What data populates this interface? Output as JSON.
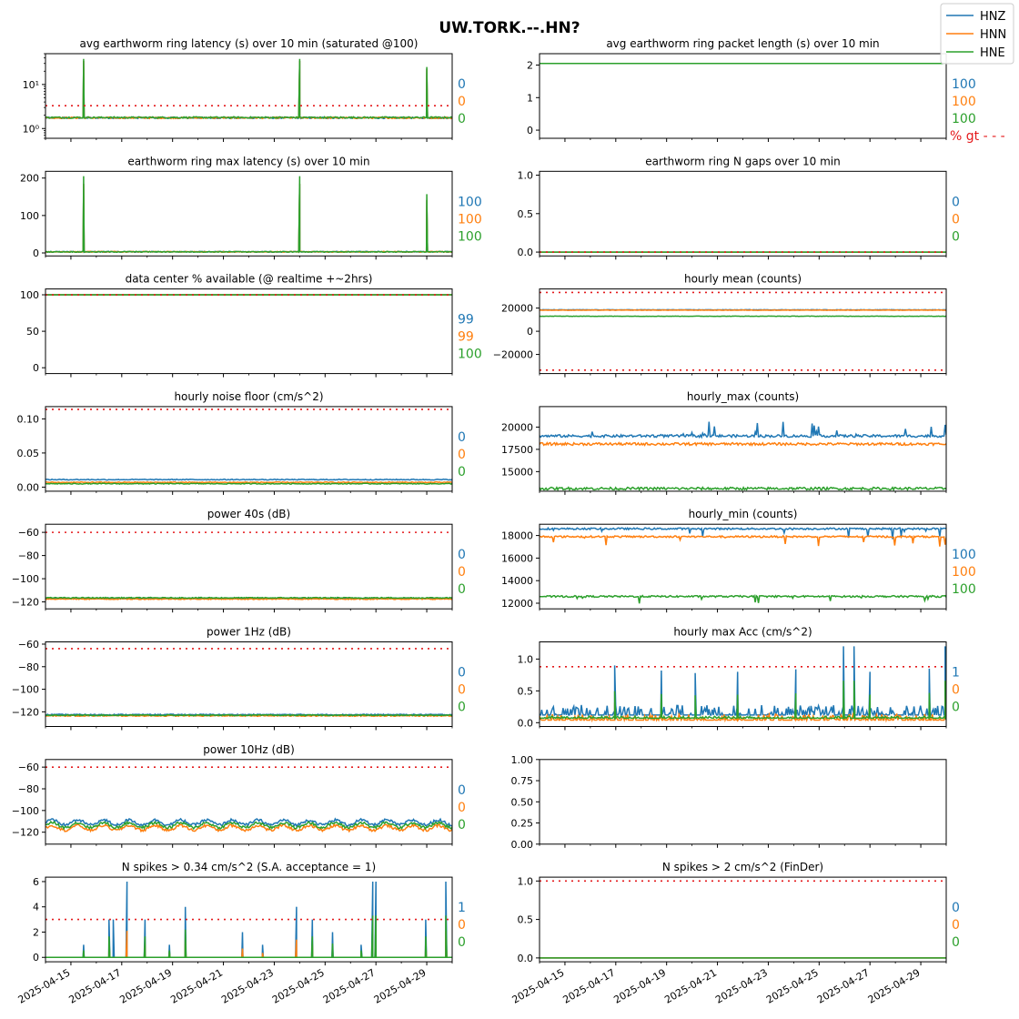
{
  "figure_title": "UW.TORK.--.HN?",
  "legend": {
    "entries": [
      {
        "label": "HNZ",
        "color": "#1f77b4"
      },
      {
        "label": "HNN",
        "color": "#ff7f0e"
      },
      {
        "label": "HNE",
        "color": "#2ca02c"
      }
    ]
  },
  "threshold_color": "#e41a1c",
  "x_tick_labels": [
    "2025-04-15",
    "2025-04-17",
    "2025-04-19",
    "2025-04-21",
    "2025-04-23",
    "2025-04-25",
    "2025-04-27",
    "2025-04-29"
  ],
  "chart_data": [
    {
      "id": "p1",
      "type": "line",
      "title": "avg earthworm ring latency (s)   over 10 min (saturated @100)",
      "yscale": "log",
      "ylim": [
        0.6,
        50
      ],
      "yticks": [
        1,
        10
      ],
      "ytick_labels": [
        "10⁰",
        "10¹"
      ],
      "threshold": [
        3.3
      ],
      "baselines": [
        1.75,
        1.75,
        1.78
      ],
      "spikes": [
        {
          "x": "2025-04-15T12:00",
          "y": 38
        },
        {
          "x": "2025-04-24T00:00",
          "y": 38
        },
        {
          "x": "2025-04-29T00:00",
          "y": 25
        }
      ],
      "pct_labels": [
        "0",
        "0",
        "0"
      ]
    },
    {
      "id": "p2",
      "type": "line",
      "title": "avg earthworm ring packet length (s)   over 10 min",
      "ylim": [
        -0.25,
        2.35
      ],
      "yticks": [
        0,
        1,
        2
      ],
      "ytick_labels": [
        "0",
        "1",
        "2"
      ],
      "threshold": [],
      "baselines": [
        2.05,
        2.05,
        2.05
      ],
      "pct_labels": [
        "100",
        "100",
        "100"
      ],
      "extra_label": "% gt - - -"
    },
    {
      "id": "p3",
      "type": "line",
      "title": "earthworm ring max latency (s)   over 10 min",
      "ylim": [
        -8,
        218
      ],
      "yticks": [
        0,
        100,
        200
      ],
      "ytick_labels": [
        "0",
        "100",
        "200"
      ],
      "threshold": [],
      "baselines": [
        3,
        3,
        3
      ],
      "spikes": [
        {
          "x": "2025-04-15T12:00",
          "y": 205
        },
        {
          "x": "2025-04-24T00:00",
          "y": 205
        },
        {
          "x": "2025-04-29T00:00",
          "y": 157
        }
      ],
      "pct_labels": [
        "100",
        "100",
        "100"
      ]
    },
    {
      "id": "p4",
      "type": "line",
      "title": "earthworm ring N gaps   over 10 min",
      "ylim": [
        -0.05,
        1.05
      ],
      "yticks": [
        0,
        0.5,
        1
      ],
      "ytick_labels": [
        "0.0",
        "0.5",
        "1.0"
      ],
      "threshold": [
        0
      ],
      "baselines": [
        0,
        0,
        0
      ],
      "pct_labels": [
        "0",
        "0",
        "0"
      ]
    },
    {
      "id": "p5",
      "type": "line",
      "title": "data center % available (@ realtime +~2hrs)",
      "ylim": [
        -8,
        108
      ],
      "yticks": [
        0,
        50,
        100
      ],
      "ytick_labels": [
        "0",
        "50",
        "100"
      ],
      "threshold": [
        100
      ],
      "baselines": [
        100,
        100,
        100
      ],
      "pct_labels": [
        "99",
        "99",
        "100"
      ]
    },
    {
      "id": "p6",
      "type": "line",
      "title": "hourly mean (counts)",
      "ylim": [
        -36500,
        36500
      ],
      "yticks": [
        -20000,
        0,
        20000
      ],
      "ytick_labels": [
        "−20000",
        "0",
        "20000"
      ],
      "threshold": [
        33500,
        -33500
      ],
      "baselines": [
        18500,
        18200,
        13000
      ],
      "pct_labels": []
    },
    {
      "id": "p7",
      "type": "line",
      "title": "hourly noise floor (cm/s^2)",
      "ylim": [
        -0.006,
        0.118
      ],
      "yticks": [
        0,
        0.05,
        0.1
      ],
      "ytick_labels": [
        "0.00",
        "0.05",
        "0.10"
      ],
      "threshold": [
        0.114
      ],
      "baselines": [
        0.011,
        0.007,
        0.005
      ],
      "pct_labels": [
        "0",
        "0",
        "0"
      ]
    },
    {
      "id": "p8",
      "type": "line",
      "title": "hourly_max (counts)",
      "ylim": [
        12800,
        22300
      ],
      "yticks": [
        15000,
        17500,
        20000
      ],
      "ytick_labels": [
        "15000",
        "17500",
        "20000"
      ],
      "threshold": [],
      "baselines": [
        19000,
        18100,
        13100
      ],
      "pct_labels": []
    },
    {
      "id": "p9",
      "type": "line",
      "title": "power 40s (dB)",
      "ylim": [
        -126,
        -53
      ],
      "yticks": [
        -120,
        -100,
        -80,
        -60
      ],
      "ytick_labels": [
        "−120",
        "−100",
        "−80",
        "−60"
      ],
      "threshold": [
        -60
      ],
      "baselines": [
        -117,
        -117.5,
        -116.5
      ],
      "pct_labels": [
        "0",
        "0",
        "0"
      ]
    },
    {
      "id": "p10",
      "type": "line",
      "title": "hourly_min (counts)",
      "ylim": [
        11500,
        19000
      ],
      "yticks": [
        12000,
        14000,
        16000,
        18000
      ],
      "ytick_labels": [
        "12000",
        "14000",
        "16000",
        "18000"
      ],
      "threshold": [],
      "baselines": [
        18600,
        17900,
        12600
      ],
      "pct_labels": [
        "100",
        "100",
        "100"
      ]
    },
    {
      "id": "p11",
      "type": "line",
      "title": "power 1Hz (dB)",
      "ylim": [
        -133,
        -58
      ],
      "yticks": [
        -120,
        -100,
        -80,
        -60
      ],
      "ytick_labels": [
        "−120",
        "−100",
        "−80",
        "−60"
      ],
      "threshold": [
        -64
      ],
      "baselines": [
        -122.5,
        -123.5,
        -123
      ],
      "pct_labels": [
        "0",
        "0",
        "0"
      ]
    },
    {
      "id": "p12",
      "type": "line",
      "title": "hourly max Acc (cm/s^2)",
      "ylim": [
        -0.06,
        1.27
      ],
      "yticks": [
        0,
        0.5,
        1
      ],
      "ytick_labels": [
        "0.0",
        "0.5",
        "1.0"
      ],
      "threshold": [
        0.88
      ],
      "baselines": [
        0.12,
        0.04,
        0.07
      ],
      "spikes": [
        {
          "x": "2025-04-16T23:00",
          "y": 0.9
        },
        {
          "x": "2025-04-18T19:00",
          "y": 0.82
        },
        {
          "x": "2025-04-20T03:00",
          "y": 0.78
        },
        {
          "x": "2025-04-21T19:00",
          "y": 0.8
        },
        {
          "x": "2025-04-24T02:00",
          "y": 0.84
        },
        {
          "x": "2025-04-25T23:00",
          "y": 1.2
        },
        {
          "x": "2025-04-26T09:00",
          "y": 1.2
        },
        {
          "x": "2025-04-27T00:00",
          "y": 0.8
        },
        {
          "x": "2025-04-29T08:00",
          "y": 0.85
        },
        {
          "x": "2025-04-29T23:00",
          "y": 1.2
        }
      ],
      "pct_labels": [
        "1",
        "0",
        "0"
      ]
    },
    {
      "id": "p13",
      "type": "line",
      "title": "power 10Hz (dB)",
      "ylim": [
        -131,
        -53
      ],
      "yticks": [
        -120,
        -100,
        -80,
        -60
      ],
      "ytick_labels": [
        "−120",
        "−100",
        "−80",
        "−60"
      ],
      "threshold": [
        -60
      ],
      "baselines": [
        -111,
        -116,
        -113.5
      ],
      "pct_labels": [
        "0",
        "0",
        "0"
      ]
    },
    {
      "id": "p14",
      "type": "empty",
      "title": "",
      "ylim": [
        0,
        1
      ],
      "yticks": [
        0,
        0.25,
        0.5,
        0.75,
        1
      ],
      "ytick_labels": [
        "0.00",
        "0.25",
        "0.50",
        "0.75",
        "1.00"
      ],
      "threshold": [],
      "baselines": [],
      "pct_labels": []
    },
    {
      "id": "p15",
      "type": "line",
      "title": "N spikes > 0.34 cm/s^2 (S.A. acceptance = 1)",
      "ylim": [
        -0.35,
        6.35
      ],
      "yticks": [
        0,
        2,
        4,
        6
      ],
      "ytick_labels": [
        "0",
        "2",
        "4",
        "6"
      ],
      "threshold": [
        3
      ],
      "baselines": [
        0,
        0,
        0
      ],
      "spikes": [
        {
          "x": "2025-04-15T12:00",
          "y": 1
        },
        {
          "x": "2025-04-16T12:00",
          "y": 3
        },
        {
          "x": "2025-04-16T16:00",
          "y": 3
        },
        {
          "x": "2025-04-17T05:00",
          "y": 6
        },
        {
          "x": "2025-04-17T22:00",
          "y": 3
        },
        {
          "x": "2025-04-18T21:00",
          "y": 1
        },
        {
          "x": "2025-04-19T12:00",
          "y": 4
        },
        {
          "x": "2025-04-21T18:00",
          "y": 2
        },
        {
          "x": "2025-04-22T13:00",
          "y": 1
        },
        {
          "x": "2025-04-23T21:00",
          "y": 4
        },
        {
          "x": "2025-04-24T12:00",
          "y": 3
        },
        {
          "x": "2025-04-25T07:00",
          "y": 2
        },
        {
          "x": "2025-04-26T10:00",
          "y": 1
        },
        {
          "x": "2025-04-26T21:00",
          "y": 6
        },
        {
          "x": "2025-04-27T00:00",
          "y": 6
        },
        {
          "x": "2025-04-28T23:00",
          "y": 3
        },
        {
          "x": "2025-04-29T18:00",
          "y": 6
        }
      ],
      "pct_labels": [
        "1",
        "0",
        "0"
      ]
    },
    {
      "id": "p16",
      "type": "line",
      "title": "N spikes > 2 cm/s^2 (FinDer)",
      "ylim": [
        -0.05,
        1.05
      ],
      "yticks": [
        0,
        0.5,
        1
      ],
      "ytick_labels": [
        "0.0",
        "0.5",
        "1.0"
      ],
      "threshold": [
        1
      ],
      "baselines": [
        0,
        0,
        0
      ],
      "pct_labels": [
        "0",
        "0",
        "0"
      ]
    }
  ]
}
